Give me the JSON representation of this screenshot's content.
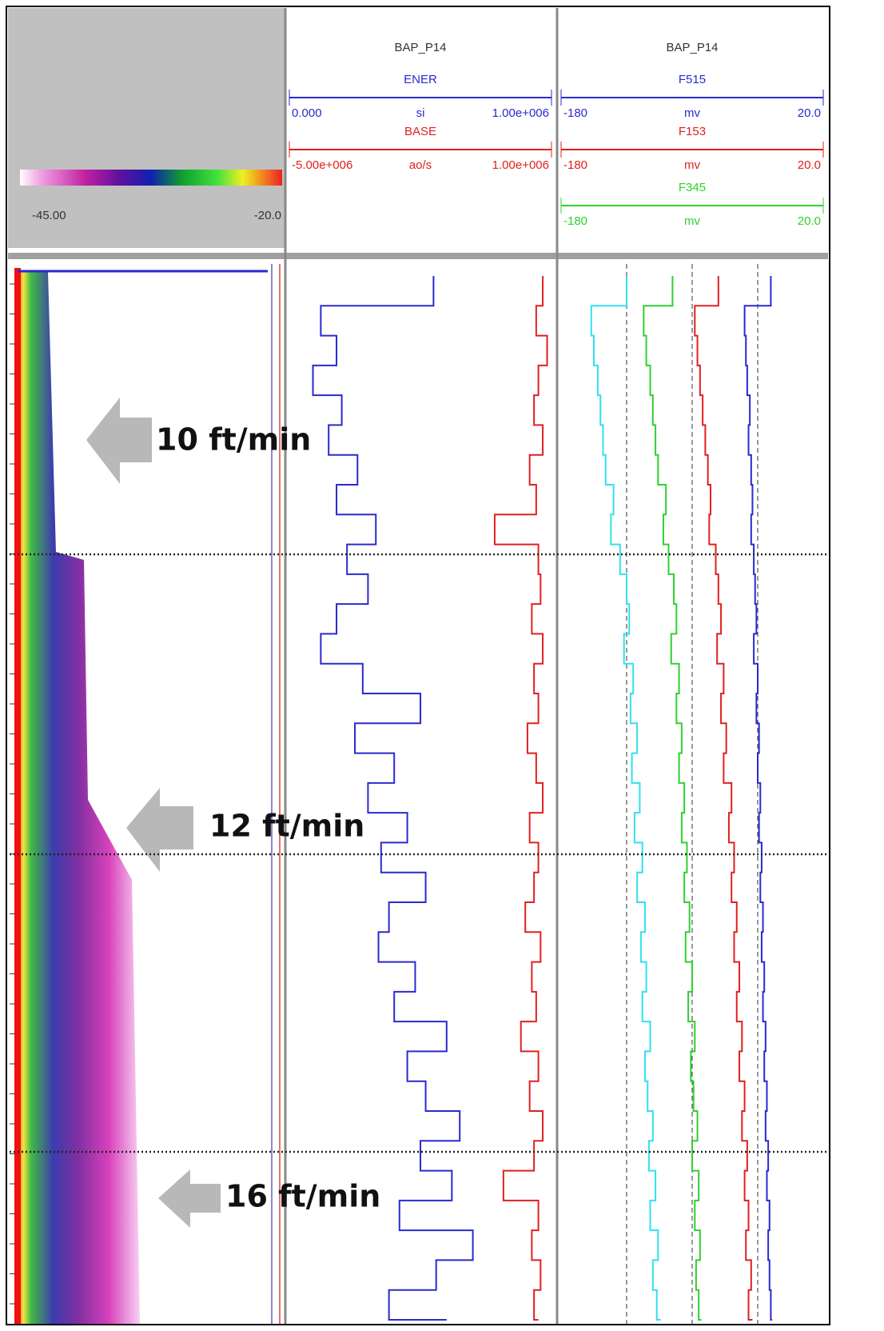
{
  "chart_data": {
    "type": "well-log",
    "annotations": [
      "10 ft/min",
      "12 ft/min",
      "16 ft/min"
    ],
    "image_track": {
      "colorscale": [
        {
          "value": -45,
          "label": "-45.00"
        },
        {
          "value": -20,
          "label": "-20.0"
        }
      ]
    },
    "tracks": [
      {
        "title": "BAP_P14",
        "curves": [
          {
            "name": "ENER",
            "unit": "si",
            "left": {
              "value": 0,
              "label": "0.000"
            },
            "right": {
              "value": 1000000,
              "label": "1.00e+006"
            },
            "color": "#2a2ad0",
            "values": [
              550000,
              120000,
              180000,
              90000,
              200000,
              150000,
              260000,
              180000,
              330000,
              220000,
              300000,
              180000,
              120000,
              280000,
              500000,
              250000,
              400000,
              300000,
              450000,
              350000,
              520000,
              380000,
              340000,
              480000,
              400000,
              600000,
              450000,
              520000,
              650000,
              500000,
              620000,
              420000,
              700000,
              560000,
              380000,
              600000
            ]
          },
          {
            "name": "BASE",
            "unit": "ao/s",
            "left": {
              "value": -5000000,
              "label": "-5.00e+006"
            },
            "right": {
              "value": 1000000,
              "label": "1.00e+006"
            },
            "color": "#e02020",
            "values": [
              800000,
              650000,
              900000,
              700000,
              600000,
              800000,
              500000,
              650000,
              -300000,
              700000,
              750000,
              550000,
              800000,
              600000,
              700000,
              450000,
              650000,
              800000,
              500000,
              700000,
              600000,
              400000,
              750000,
              550000,
              650000,
              300000,
              700000,
              500000,
              800000,
              600000,
              -100000,
              700000,
              550000,
              750000,
              600000,
              700000
            ]
          }
        ]
      },
      {
        "title": "BAP_P14",
        "xlim": [
          -180,
          20
        ],
        "xticks": [
          -130,
          -80,
          -30
        ],
        "curves": [
          {
            "name": "F515",
            "unit": "mv",
            "left": -180,
            "right": {
              "value": 20,
              "label": "20.0"
            },
            "color": "#2a2ad0",
            "values": [
              -20,
              -40,
              -39,
              -38,
              -36,
              -37,
              -35,
              -34,
              -35,
              -33,
              -32,
              -31,
              -33,
              -30,
              -31,
              -29,
              -30,
              -28,
              -29,
              -27,
              -28,
              -26,
              -27,
              -25,
              -26,
              -24,
              -25,
              -23,
              -24,
              -22,
              -23,
              -21,
              -22,
              -21,
              -20,
              -19
            ]
          },
          {
            "name": "F153",
            "unit": "mv",
            "left": -180,
            "right": {
              "value": 20,
              "label": "20.0"
            },
            "color": "#e02020",
            "values": [
              -60,
              -78,
              -76,
              -74,
              -72,
              -70,
              -68,
              -66,
              -67,
              -62,
              -60,
              -58,
              -61,
              -56,
              -58,
              -54,
              -56,
              -50,
              -52,
              -48,
              -50,
              -46,
              -48,
              -44,
              -46,
              -42,
              -44,
              -40,
              -42,
              -38,
              -40,
              -37,
              -39,
              -35,
              -37,
              -34
            ]
          },
          {
            "name": "F345",
            "unit": "mv",
            "left": -180,
            "right": {
              "value": 20,
              "label": "20.0"
            },
            "color": "#30d030",
            "values": [
              -95,
              -117,
              -115,
              -112,
              -110,
              -108,
              -106,
              -100,
              -102,
              -98,
              -94,
              -92,
              -96,
              -90,
              -92,
              -88,
              -90,
              -86,
              -88,
              -84,
              -86,
              -82,
              -85,
              -80,
              -83,
              -78,
              -81,
              -79,
              -76,
              -80,
              -75,
              -78,
              -74,
              -77,
              -75,
              -73
            ]
          },
          {
            "color": "#30e0f0",
            "values": [
              -130,
              -157,
              -155,
              -152,
              -150,
              -148,
              -146,
              -140,
              -142,
              -135,
              -130,
              -128,
              -132,
              -125,
              -127,
              -122,
              -126,
              -120,
              -124,
              -118,
              -122,
              -116,
              -119,
              -115,
              -118,
              -112,
              -116,
              -114,
              -110,
              -113,
              -108,
              -112,
              -106,
              -110,
              -107,
              -104
            ]
          }
        ]
      }
    ]
  }
}
